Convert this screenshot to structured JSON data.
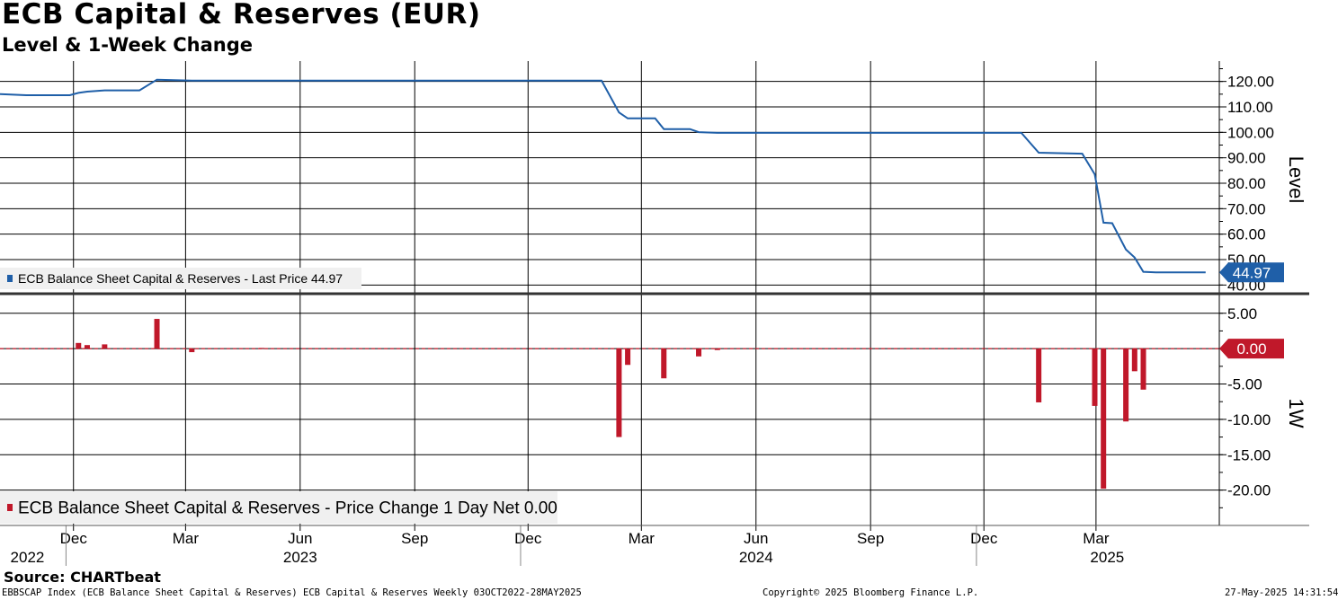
{
  "title": "ECB Capital & Reserves (EUR)",
  "subtitle": "Level & 1-Week Change",
  "source": "Source: CHARTbeat",
  "footer": {
    "left": "EBBSCAP Index (ECB Balance Sheet Capital & Reserves) ECB Capital & Reserves  Weekly 03OCT2022-28MAY2025",
    "center": "Copyright© 2025 Bloomberg Finance L.P.",
    "right": "27-May-2025 14:31:54"
  },
  "colors": {
    "level": "#1f5fa8",
    "change": "#c0182a",
    "grid": "#000000"
  },
  "chart_data": [
    {
      "type": "line",
      "ylabel": "Level",
      "ylim": [
        38,
        128
      ],
      "yticks": [
        40,
        50,
        60,
        70,
        80,
        90,
        100,
        110,
        120
      ],
      "ytick_labels": [
        "40.00",
        "50.00",
        "60.00",
        "70.00",
        "80.00",
        "90.00",
        "100.00",
        "110.00",
        "120.00"
      ],
      "legend": "ECB Balance Sheet Capital & Reserves - Last Price 44.97",
      "legend_position": "bottom-left",
      "last_value": "44.97",
      "grid": true,
      "series": [
        {
          "name": "ECB Balance Sheet Capital & Reserves",
          "points": [
            [
              "2022-10-03",
              115.0
            ],
            [
              "2022-10-24",
              114.6
            ],
            [
              "2022-11-28",
              114.6
            ],
            [
              "2022-12-05",
              115.5
            ],
            [
              "2022-12-12",
              116.0
            ],
            [
              "2022-12-26",
              116.5
            ],
            [
              "2023-01-23",
              116.5
            ],
            [
              "2023-02-06",
              120.7
            ],
            [
              "2023-03-06",
              120.3
            ],
            [
              "2023-11-20",
              120.3
            ],
            [
              "2023-12-25",
              120.3
            ],
            [
              "2024-01-29",
              120.3
            ],
            [
              "2024-02-12",
              107.8
            ],
            [
              "2024-02-19",
              105.5
            ],
            [
              "2024-03-12",
              105.5
            ],
            [
              "2024-03-19",
              101.3
            ],
            [
              "2024-04-09",
              101.3
            ],
            [
              "2024-04-16",
              100.1
            ],
            [
              "2024-05-01",
              99.8
            ],
            [
              "2024-12-31",
              99.8
            ],
            [
              "2025-01-14",
              92.0
            ],
            [
              "2025-02-18",
              91.6
            ],
            [
              "2025-02-28",
              83.5
            ],
            [
              "2025-03-07",
              64.5
            ],
            [
              "2025-03-14",
              64.3
            ],
            [
              "2025-03-25",
              54.0
            ],
            [
              "2025-04-01",
              50.8
            ],
            [
              "2025-04-08",
              45.2
            ],
            [
              "2025-04-18",
              44.97
            ],
            [
              "2025-05-28",
              44.97
            ]
          ]
        }
      ]
    },
    {
      "type": "bar",
      "ylabel": "1W",
      "ylim": [
        -25,
        7
      ],
      "yticks": [
        5,
        0,
        -5,
        -10,
        -15,
        -20
      ],
      "ytick_labels": [
        "5.00",
        "0.00",
        "-5.00",
        "-10.00",
        "-15.00",
        "-20.00"
      ],
      "legend": "ECB Balance Sheet Capital & Reserves - Price Change 1 Day Net 0.00",
      "legend_position": "bottom-left",
      "last_value": "0.00",
      "grid": true,
      "series": [
        {
          "name": "ECB Balance Sheet Capital & Reserves",
          "points": [
            [
              "2022-12-05",
              0.8
            ],
            [
              "2022-12-12",
              0.5
            ],
            [
              "2022-12-26",
              0.6
            ],
            [
              "2023-02-06",
              4.2
            ],
            [
              "2023-03-06",
              -0.5
            ],
            [
              "2023-05-01",
              0.1
            ],
            [
              "2024-02-12",
              -12.5
            ],
            [
              "2024-02-19",
              -2.3
            ],
            [
              "2024-03-19",
              -4.2
            ],
            [
              "2024-04-16",
              -1.1
            ],
            [
              "2024-05-01",
              -0.2
            ],
            [
              "2025-01-14",
              -7.6
            ],
            [
              "2025-02-28",
              -8.1
            ],
            [
              "2025-03-07",
              -19.8
            ],
            [
              "2025-03-25",
              -10.3
            ],
            [
              "2025-04-01",
              -3.2
            ],
            [
              "2025-04-08",
              -5.8
            ]
          ]
        }
      ]
    }
  ],
  "x_axis": {
    "range": [
      "2022-10-03",
      "2025-06-08"
    ],
    "month_ticks": [
      {
        "date": "2022-12-01",
        "label": "Dec"
      },
      {
        "date": "2023-03-01",
        "label": "Mar"
      },
      {
        "date": "2023-06-01",
        "label": "Jun"
      },
      {
        "date": "2023-09-01",
        "label": "Sep"
      },
      {
        "date": "2023-12-01",
        "label": "Dec"
      },
      {
        "date": "2024-03-01",
        "label": "Mar"
      },
      {
        "date": "2024-06-01",
        "label": "Jun"
      },
      {
        "date": "2024-09-01",
        "label": "Sep"
      },
      {
        "date": "2024-12-01",
        "label": "Dec"
      },
      {
        "date": "2025-03-01",
        "label": "Mar"
      }
    ],
    "year_labels": [
      {
        "date": "2022-10-25",
        "label": "2022"
      },
      {
        "date": "2023-06-01",
        "label": "2023"
      },
      {
        "date": "2024-06-01",
        "label": "2024"
      },
      {
        "date": "2025-03-10",
        "label": "2025"
      }
    ],
    "year_separators": [
      "2022-11-25",
      "2023-11-25",
      "2024-11-25"
    ]
  }
}
